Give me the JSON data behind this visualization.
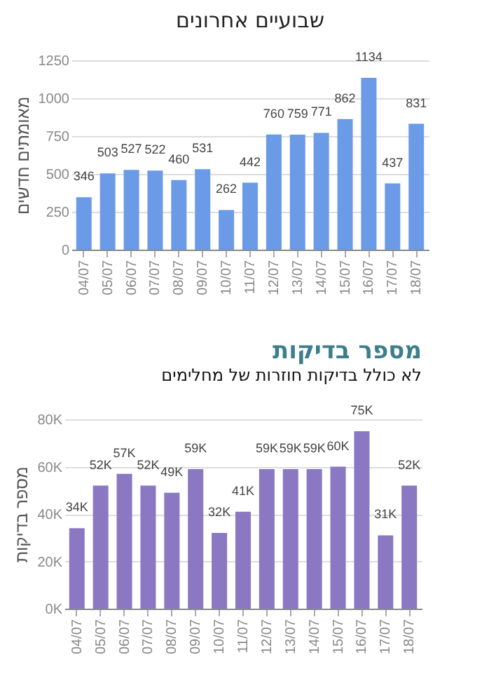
{
  "chart_data": [
    {
      "type": "bar",
      "title": "שבועיים אחרונים",
      "ylabel": "מאומתים חדשים",
      "categories": [
        "04/07",
        "05/07",
        "06/07",
        "07/07",
        "08/07",
        "09/07",
        "10/07",
        "11/07",
        "12/07",
        "13/07",
        "14/07",
        "15/07",
        "16/07",
        "17/07",
        "18/07"
      ],
      "values": [
        346,
        503,
        527,
        522,
        460,
        531,
        262,
        442,
        760,
        759,
        771,
        862,
        1134,
        437,
        831
      ],
      "color": "#6b9be6",
      "data_labels": true,
      "ylim": [
        0,
        1250
      ],
      "yticks": [
        0,
        250,
        500,
        750,
        1000,
        1250
      ],
      "grid": "y"
    },
    {
      "type": "bar",
      "title": "מספר בדיקות",
      "subtitle": "לא כולל בדיקות חוזרות של מחלימים",
      "ylabel": "מספר בדיקות",
      "categories": [
        "04/07",
        "05/07",
        "06/07",
        "07/07",
        "08/07",
        "09/07",
        "10/07",
        "11/07",
        "12/07",
        "13/07",
        "14/07",
        "15/07",
        "16/07",
        "17/07",
        "18/07"
      ],
      "values": [
        34000,
        52000,
        57000,
        52000,
        49000,
        59000,
        32000,
        41000,
        59000,
        59000,
        59000,
        60000,
        75000,
        31000,
        52000
      ],
      "value_labels": [
        "34K",
        "52K",
        "57K",
        "52K",
        "49K",
        "59K",
        "32K",
        "41K",
        "59K",
        "59K",
        "59K",
        "60K",
        "75K",
        "31K",
        "52K"
      ],
      "color": "#8a78c2",
      "ylim": [
        0,
        80000
      ],
      "yticks": [
        {
          "value": 0,
          "label": "0K"
        },
        {
          "value": 20000,
          "label": "20K"
        },
        {
          "value": 40000,
          "label": "40K"
        },
        {
          "value": 60000,
          "label": "60K"
        },
        {
          "value": 80000,
          "label": "80K"
        }
      ],
      "grid": "y"
    }
  ]
}
